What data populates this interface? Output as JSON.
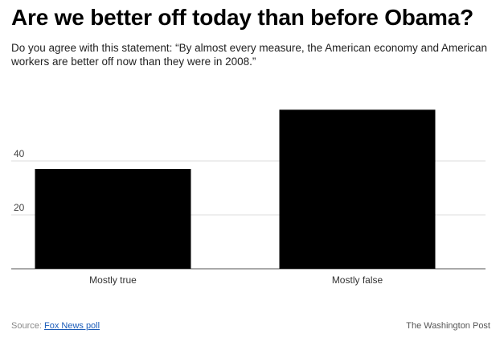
{
  "title": "Are we better off today than before Obama?",
  "subtitle": "Do you agree with this statement: “By almost every measure, the American economy and American workers are better off now than they were in 2008.”",
  "chart_data": {
    "type": "bar",
    "categories": [
      "Mostly true",
      "Mostly false"
    ],
    "values": [
      37,
      59
    ],
    "ylim": [
      0,
      60
    ],
    "yticks": [
      20,
      40
    ],
    "grid": true,
    "bar_color": "#000000"
  },
  "footer": {
    "source_label": "Source:",
    "source_link": "Fox News poll",
    "credit": "The Washington Post"
  }
}
